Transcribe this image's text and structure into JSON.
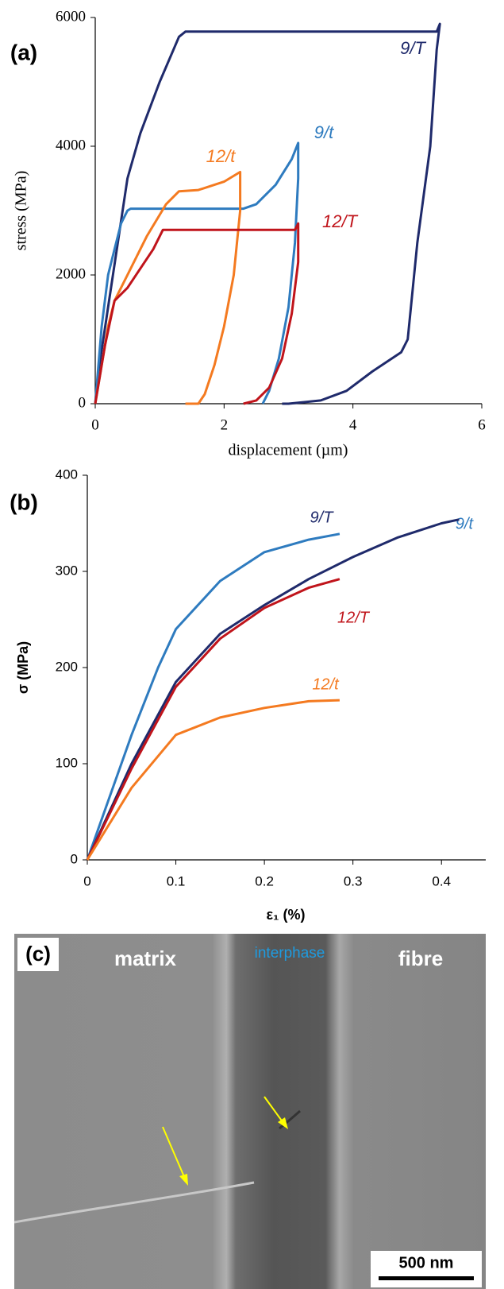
{
  "chart_data": [
    {
      "type": "line",
      "label": "(a)",
      "x_label": "displacement (µm)",
      "y_label": "stress (MPa)",
      "xlim": [
        0,
        6
      ],
      "xticks": [
        0,
        2,
        4,
        6
      ],
      "ylim": [
        0,
        6000
      ],
      "yticks": [
        0,
        2000,
        4000,
        6000
      ],
      "series": [
        {
          "name": "9/T",
          "color": "#1f2a6b",
          "x": [
            0,
            0.05,
            0.2,
            0.35,
            0.5,
            0.7,
            1.0,
            1.3,
            1.4,
            5.3,
            5.35,
            5.3,
            5.2,
            5.0,
            4.85,
            4.75,
            4.3,
            3.9,
            3.5,
            3.0,
            2.9
          ],
          "values": [
            0,
            500,
            1500,
            2500,
            3500,
            4200,
            5000,
            5700,
            5780,
            5780,
            5900,
            5500,
            4000,
            2500,
            1000,
            800,
            500,
            200,
            50,
            0,
            0
          ]
        },
        {
          "name": "9/t",
          "color": "#2e7bbf",
          "x": [
            0,
            0.1,
            0.2,
            0.3,
            0.4,
            0.5,
            0.55,
            2.3,
            2.5,
            2.8,
            3.05,
            3.15,
            3.15,
            3.1,
            3.0,
            2.85,
            2.7,
            2.6
          ],
          "values": [
            0,
            1200,
            2000,
            2400,
            2800,
            3000,
            3030,
            3030,
            3100,
            3400,
            3800,
            4050,
            3500,
            2500,
            1500,
            700,
            200,
            0
          ]
        },
        {
          "name": "12/t",
          "color": "#f47a20",
          "x": [
            0,
            0.2,
            0.3,
            0.5,
            0.8,
            1.1,
            1.3,
            1.6,
            2.0,
            2.25,
            2.25,
            2.15,
            2.0,
            1.85,
            1.7,
            1.6,
            1.4
          ],
          "values": [
            0,
            1200,
            1600,
            2000,
            2600,
            3100,
            3300,
            3320,
            3450,
            3600,
            3000,
            2000,
            1200,
            600,
            150,
            0,
            0
          ]
        },
        {
          "name": "12/T",
          "color": "#c0141b",
          "x": [
            0,
            0.15,
            0.3,
            0.5,
            0.7,
            0.9,
            1.05,
            3.1,
            3.15,
            3.15,
            3.05,
            2.9,
            2.7,
            2.5,
            2.3
          ],
          "values": [
            0,
            900,
            1600,
            1800,
            2100,
            2400,
            2700,
            2700,
            2800,
            2200,
            1400,
            700,
            250,
            50,
            0
          ]
        }
      ]
    },
    {
      "type": "line",
      "label": "(b)",
      "x_label": "ε₁ (%)",
      "y_label": "σ (MPa)",
      "xlim": [
        0,
        0.45
      ],
      "xticks": [
        0,
        0.1,
        0.2,
        0.3,
        0.4
      ],
      "ylim": [
        0,
        400
      ],
      "yticks": [
        0,
        100,
        200,
        300,
        400
      ],
      "series": [
        {
          "name": "9/t",
          "color": "#2e7bbf",
          "x": [
            0,
            0.05,
            0.08,
            0.1,
            0.15,
            0.2,
            0.25,
            0.285
          ],
          "values": [
            0,
            130,
            200,
            240,
            290,
            320,
            333,
            339
          ]
        },
        {
          "name": "9/T",
          "color": "#1f2a6b",
          "x": [
            0,
            0.05,
            0.1,
            0.15,
            0.2,
            0.25,
            0.3,
            0.35,
            0.4,
            0.42
          ],
          "values": [
            0,
            100,
            185,
            235,
            265,
            292,
            315,
            335,
            350,
            354
          ]
        },
        {
          "name": "12/T",
          "color": "#c0141b",
          "x": [
            0,
            0.05,
            0.1,
            0.15,
            0.2,
            0.25,
            0.285
          ],
          "values": [
            0,
            95,
            180,
            230,
            262,
            283,
            292
          ]
        },
        {
          "name": "12/t",
          "color": "#f47a20",
          "x": [
            0,
            0.05,
            0.1,
            0.15,
            0.2,
            0.25,
            0.285
          ],
          "values": [
            0,
            75,
            130,
            148,
            158,
            165,
            166
          ]
        }
      ]
    }
  ],
  "panel_c": {
    "label": "(c)",
    "regions": [
      "matrix",
      "interphase",
      "fibre"
    ],
    "scale_bar": "500 nm"
  }
}
